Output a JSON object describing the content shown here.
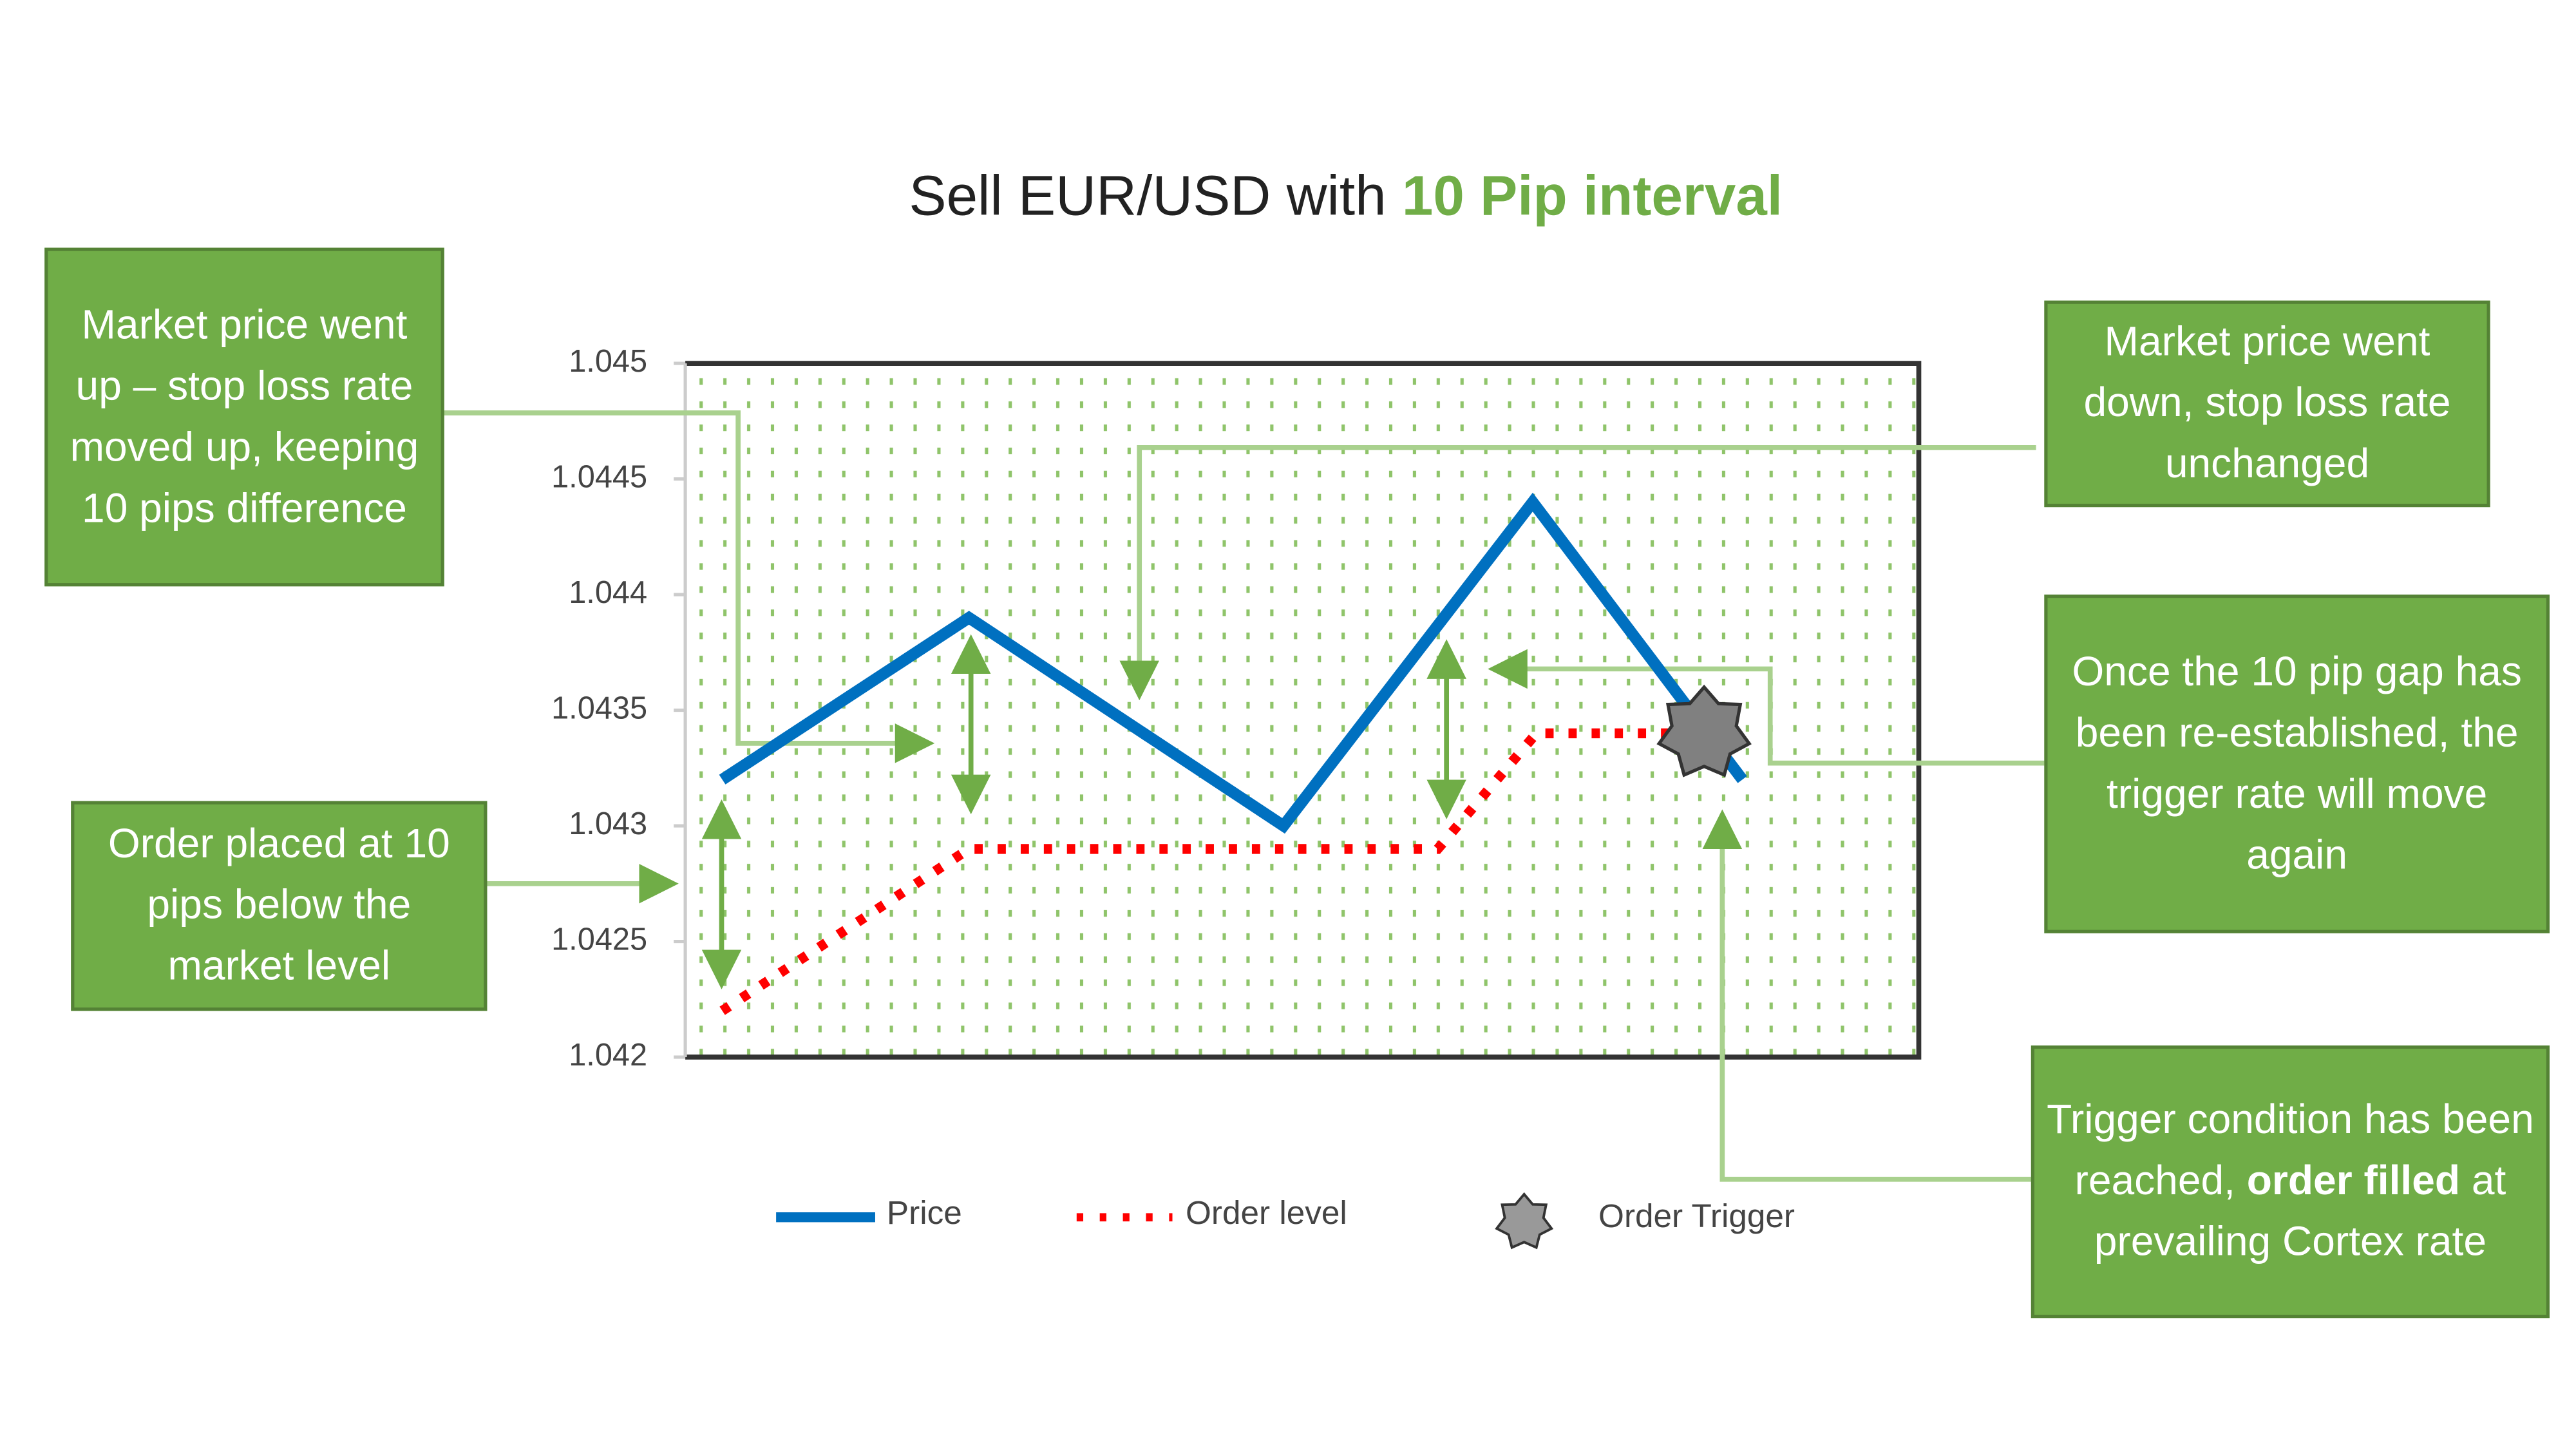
{
  "chart_data": {
    "type": "line",
    "title": "Sell EUR/USD with",
    "title_highlight": "10 Pip interval",
    "xlabel": "",
    "ylabel": "",
    "ylim": [
      1.042,
      1.045
    ],
    "xlim": [
      0,
      10
    ],
    "yticks": [
      "1.045",
      "1.0445",
      "1.044",
      "1.0435",
      "1.043",
      "1.0425",
      "1.042"
    ],
    "grid": "dotted background",
    "legend_position": "bottom",
    "series": [
      {
        "name": "Price",
        "color": "#0070c0",
        "style": "solid",
        "x": [
          0.3,
          2.3,
          4.85,
          6.87,
          8.57
        ],
        "y": [
          1.0432,
          1.0439,
          1.043,
          1.0444,
          1.0432
        ]
      },
      {
        "name": "Order level",
        "color": "#ff0000",
        "style": "dotted",
        "x": [
          0.3,
          2.3,
          6.1,
          6.9,
          8.0
        ],
        "y": [
          1.0422,
          1.0429,
          1.0429,
          1.0434,
          1.0434
        ]
      }
    ],
    "markers": [
      {
        "name": "Order Trigger",
        "x": 8.26,
        "y": 1.0434,
        "color": "#808080",
        "shape": "star"
      }
    ]
  },
  "annotations": [
    {
      "text": "Market price went up – stop loss rate moved up, keeping 10 pips difference"
    },
    {
      "text": "Order placed at 10 pips below the market level"
    },
    {
      "text": "Market price went down, stop loss rate unchanged"
    },
    {
      "text": "Once the 10 pip gap has been re-established, the trigger rate will move again"
    },
    {
      "text_before": "Trigger condition has been reached, ",
      "text_bold": "order filled",
      "text_after": " at prevailing Cortex rate"
    }
  ],
  "colors": {
    "accent_green": "#70ad47",
    "box_border": "#548235",
    "connector": "#a9d18e"
  }
}
